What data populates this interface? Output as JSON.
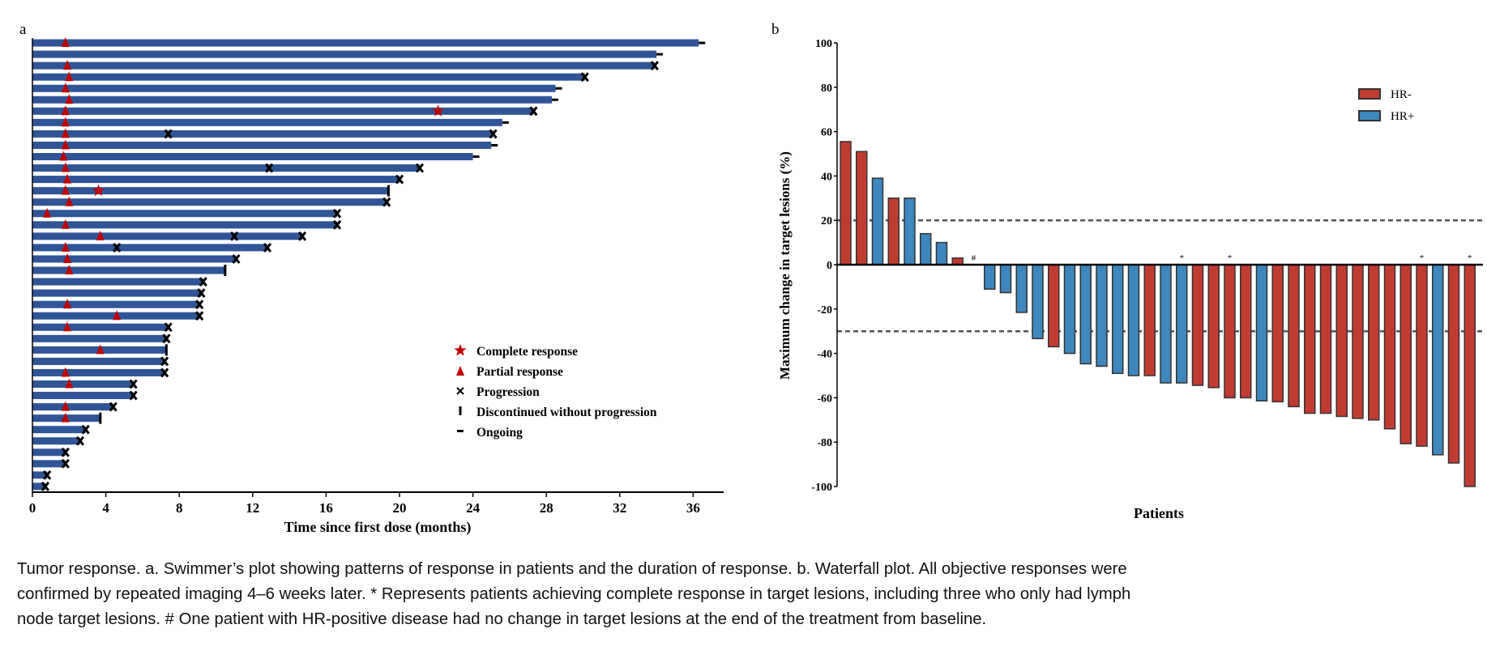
{
  "chart_data": [
    {
      "type": "bar",
      "subtype": "swimmer",
      "panel_label": "a",
      "xlabel": "Time since first dose (months)",
      "ylabel": "",
      "xlim": [
        0,
        38
      ],
      "xticks": [
        0,
        4,
        8,
        12,
        16,
        20,
        24,
        28,
        32,
        36
      ],
      "bar_color": "#2F5597",
      "legend": {
        "position": "bottom-right",
        "items": [
          {
            "key": "complete",
            "label": "Complete response",
            "color": "#C00000"
          },
          {
            "key": "partial",
            "label": "Partial response",
            "color": "#C00000"
          },
          {
            "key": "progression",
            "label": "Progression",
            "color": "#000000"
          },
          {
            "key": "discontinued",
            "label": "Discontinued without progression",
            "color": "#000000"
          },
          {
            "key": "ongoing",
            "label": "Ongoing",
            "color": "#000000"
          }
        ]
      },
      "patients": [
        {
          "duration": 36.3,
          "end": "ongoing",
          "partial": [
            1.8
          ],
          "complete": [],
          "progression": []
        },
        {
          "duration": 34.0,
          "end": "ongoing",
          "partial": [],
          "complete": [],
          "progression": []
        },
        {
          "duration": 33.9,
          "end": "progression",
          "partial": [
            1.9
          ],
          "complete": [],
          "progression": []
        },
        {
          "duration": 30.1,
          "end": "progression",
          "partial": [
            2.0
          ],
          "complete": [],
          "progression": []
        },
        {
          "duration": 28.5,
          "end": "ongoing",
          "partial": [
            1.8
          ],
          "complete": [],
          "progression": []
        },
        {
          "duration": 28.3,
          "end": "ongoing",
          "partial": [
            2.0
          ],
          "complete": [],
          "progression": []
        },
        {
          "duration": 27.3,
          "end": "progression",
          "partial": [
            1.8
          ],
          "complete": [
            22.1
          ],
          "progression": []
        },
        {
          "duration": 25.6,
          "end": "ongoing",
          "partial": [
            1.8
          ],
          "complete": [],
          "progression": []
        },
        {
          "duration": 25.1,
          "end": "progression",
          "partial": [
            1.8
          ],
          "complete": [],
          "progression": [
            7.4
          ]
        },
        {
          "duration": 25.0,
          "end": "ongoing",
          "partial": [
            1.8
          ],
          "complete": [],
          "progression": []
        },
        {
          "duration": 24.0,
          "end": "ongoing",
          "partial": [
            1.7
          ],
          "complete": [],
          "progression": []
        },
        {
          "duration": 21.1,
          "end": "progression",
          "partial": [
            1.8
          ],
          "complete": [],
          "progression": [
            12.9
          ]
        },
        {
          "duration": 20.0,
          "end": "progression",
          "partial": [
            1.9
          ],
          "complete": [],
          "progression": []
        },
        {
          "duration": 19.4,
          "end": "discontinued",
          "partial": [
            1.8
          ],
          "complete": [
            3.6
          ],
          "progression": []
        },
        {
          "duration": 19.3,
          "end": "progression",
          "partial": [
            2.0
          ],
          "complete": [],
          "progression": []
        },
        {
          "duration": 16.6,
          "end": "progression",
          "partial": [
            0.8
          ],
          "complete": [],
          "progression": []
        },
        {
          "duration": 16.6,
          "end": "progression",
          "partial": [
            1.8
          ],
          "complete": [],
          "progression": []
        },
        {
          "duration": 14.7,
          "end": "progression",
          "partial": [
            3.7
          ],
          "complete": [],
          "progression": [
            11.0
          ]
        },
        {
          "duration": 12.8,
          "end": "progression",
          "partial": [
            1.8
          ],
          "complete": [],
          "progression": [
            4.6
          ]
        },
        {
          "duration": 11.1,
          "end": "progression",
          "partial": [
            1.9
          ],
          "complete": [],
          "progression": []
        },
        {
          "duration": 10.5,
          "end": "discontinued",
          "partial": [
            2.0
          ],
          "complete": [],
          "progression": []
        },
        {
          "duration": 9.3,
          "end": "progression",
          "partial": [],
          "complete": [],
          "progression": []
        },
        {
          "duration": 9.2,
          "end": "progression",
          "partial": [],
          "complete": [],
          "progression": []
        },
        {
          "duration": 9.1,
          "end": "progression",
          "partial": [
            1.9
          ],
          "complete": [],
          "progression": []
        },
        {
          "duration": 9.1,
          "end": "progression",
          "partial": [
            4.6
          ],
          "complete": [],
          "progression": []
        },
        {
          "duration": 7.4,
          "end": "progression",
          "partial": [
            1.9
          ],
          "complete": [],
          "progression": []
        },
        {
          "duration": 7.3,
          "end": "progression",
          "partial": [],
          "complete": [],
          "progression": []
        },
        {
          "duration": 7.3,
          "end": "discontinued",
          "partial": [
            3.7
          ],
          "complete": [],
          "progression": []
        },
        {
          "duration": 7.2,
          "end": "progression",
          "partial": [],
          "complete": [],
          "progression": []
        },
        {
          "duration": 7.2,
          "end": "progression",
          "partial": [
            1.8
          ],
          "complete": [],
          "progression": []
        },
        {
          "duration": 5.5,
          "end": "progression",
          "partial": [
            2.0
          ],
          "complete": [],
          "progression": []
        },
        {
          "duration": 5.5,
          "end": "progression",
          "partial": [],
          "complete": [],
          "progression": []
        },
        {
          "duration": 4.4,
          "end": "progression",
          "partial": [
            1.8
          ],
          "complete": [],
          "progression": []
        },
        {
          "duration": 3.7,
          "end": "discontinued",
          "partial": [
            1.8
          ],
          "complete": [],
          "progression": []
        },
        {
          "duration": 2.9,
          "end": "progression",
          "partial": [],
          "complete": [],
          "progression": []
        },
        {
          "duration": 2.6,
          "end": "progression",
          "partial": [],
          "complete": [],
          "progression": []
        },
        {
          "duration": 1.8,
          "end": "progression",
          "partial": [],
          "complete": [],
          "progression": []
        },
        {
          "duration": 1.8,
          "end": "progression",
          "partial": [],
          "complete": [],
          "progression": []
        },
        {
          "duration": 0.8,
          "end": "progression",
          "partial": [],
          "complete": [],
          "progression": []
        },
        {
          "duration": 0.7,
          "end": "progression",
          "partial": [],
          "complete": [],
          "progression": []
        }
      ]
    },
    {
      "type": "bar",
      "subtype": "waterfall",
      "panel_label": "b",
      "xlabel": "Patients",
      "ylabel": "Maximum change in target lesions (%)",
      "ylim": [
        -100,
        100
      ],
      "yticks": [
        100,
        80,
        60,
        40,
        20,
        0,
        -20,
        -40,
        -60,
        -80,
        -100
      ],
      "reference_lines": [
        20,
        -30
      ],
      "legend": {
        "position": "top-right",
        "items": [
          {
            "key": "HR-",
            "label": "HR-",
            "color": "#C23B32"
          },
          {
            "key": "HR+",
            "label": "HR+",
            "color": "#3F86BD"
          }
        ]
      },
      "bars": [
        {
          "value": 55.5,
          "group": "HR-",
          "mark": ""
        },
        {
          "value": 51,
          "group": "HR-",
          "mark": ""
        },
        {
          "value": 39,
          "group": "HR+",
          "mark": ""
        },
        {
          "value": 30,
          "group": "HR-",
          "mark": ""
        },
        {
          "value": 30,
          "group": "HR+",
          "mark": ""
        },
        {
          "value": 14,
          "group": "HR+",
          "mark": ""
        },
        {
          "value": 10,
          "group": "HR+",
          "mark": ""
        },
        {
          "value": 3,
          "group": "HR-",
          "mark": ""
        },
        {
          "value": 0,
          "group": "HR+",
          "mark": "#"
        },
        {
          "value": -11,
          "group": "HR+",
          "mark": ""
        },
        {
          "value": -12.6,
          "group": "HR+",
          "mark": ""
        },
        {
          "value": -21.5,
          "group": "HR+",
          "mark": ""
        },
        {
          "value": -33.3,
          "group": "HR+",
          "mark": ""
        },
        {
          "value": -37,
          "group": "HR-",
          "mark": ""
        },
        {
          "value": -40,
          "group": "HR+",
          "mark": ""
        },
        {
          "value": -44.7,
          "group": "HR+",
          "mark": ""
        },
        {
          "value": -45.8,
          "group": "HR+",
          "mark": ""
        },
        {
          "value": -49,
          "group": "HR+",
          "mark": ""
        },
        {
          "value": -50,
          "group": "HR+",
          "mark": ""
        },
        {
          "value": -50,
          "group": "HR-",
          "mark": ""
        },
        {
          "value": -53.3,
          "group": "HR+",
          "mark": ""
        },
        {
          "value": -53.3,
          "group": "HR+",
          "mark": "*"
        },
        {
          "value": -54.4,
          "group": "HR-",
          "mark": ""
        },
        {
          "value": -55.4,
          "group": "HR-",
          "mark": ""
        },
        {
          "value": -60,
          "group": "HR-",
          "mark": "*"
        },
        {
          "value": -60,
          "group": "HR-",
          "mark": ""
        },
        {
          "value": -61.4,
          "group": "HR+",
          "mark": ""
        },
        {
          "value": -61.8,
          "group": "HR-",
          "mark": ""
        },
        {
          "value": -64,
          "group": "HR-",
          "mark": ""
        },
        {
          "value": -67,
          "group": "HR-",
          "mark": ""
        },
        {
          "value": -67,
          "group": "HR-",
          "mark": ""
        },
        {
          "value": -68.4,
          "group": "HR-",
          "mark": ""
        },
        {
          "value": -69.3,
          "group": "HR-",
          "mark": ""
        },
        {
          "value": -70,
          "group": "HR-",
          "mark": ""
        },
        {
          "value": -74,
          "group": "HR-",
          "mark": ""
        },
        {
          "value": -80.7,
          "group": "HR-",
          "mark": ""
        },
        {
          "value": -81.8,
          "group": "HR-",
          "mark": "*"
        },
        {
          "value": -85.7,
          "group": "HR+",
          "mark": ""
        },
        {
          "value": -89.4,
          "group": "HR-",
          "mark": ""
        },
        {
          "value": -100,
          "group": "HR-",
          "mark": "*"
        }
      ]
    }
  ],
  "caption": {
    "lines": [
      "Tumor response. a. Swimmer’s plot showing patterns of response in patients and the duration of response. b. Waterfall plot. All objective responses were",
      "confirmed by repeated imaging 4–6 weeks later. * Represents patients achieving complete response in target lesions, including three who only had lymph",
      "node target lesions. # One patient with HR-positive disease had no change in target lesions at the end of the treatment from baseline."
    ]
  }
}
